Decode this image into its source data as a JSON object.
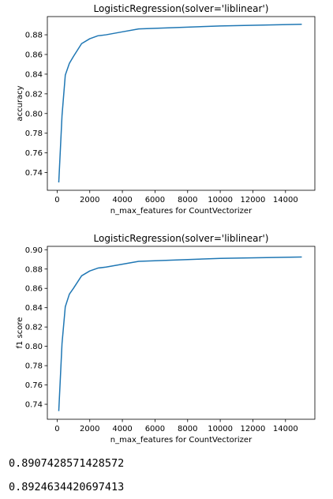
{
  "outputs": [
    "0.8907428571428572",
    "0.8924634420697413"
  ],
  "chart_data": [
    {
      "type": "line",
      "title": "LogisticRegression(solver='liblinear')",
      "xlabel": "n_max_features for CountVectorizer",
      "ylabel": "accuracy",
      "xlim": [
        -600,
        15800
      ],
      "ylim": [
        0.722,
        0.8985
      ],
      "xticks": [
        0,
        2000,
        4000,
        6000,
        8000,
        10000,
        12000,
        14000
      ],
      "yticks": [
        0.74,
        0.76,
        0.78,
        0.8,
        0.82,
        0.84,
        0.86,
        0.88
      ],
      "ytick_labels": [
        "0.74",
        "0.76",
        "0.78",
        "0.80",
        "0.82",
        "0.84",
        "0.86",
        "0.88"
      ],
      "line_color": "#1f77b4",
      "series": [
        {
          "x": [
            100,
            300,
            500,
            750,
            1000,
            1500,
            2000,
            2500,
            3000,
            4000,
            5000,
            10000,
            15000
          ],
          "y": [
            0.73,
            0.798,
            0.839,
            0.851,
            0.858,
            0.871,
            0.876,
            0.879,
            0.88,
            0.883,
            0.886,
            0.889,
            0.8907
          ]
        }
      ]
    },
    {
      "type": "line",
      "title": "LogisticRegression(solver='liblinear')",
      "xlabel": "n_max_features for CountVectorizer",
      "ylabel": "f1 score",
      "xlim": [
        -600,
        15800
      ],
      "ylim": [
        0.7245,
        0.9035
      ],
      "xticks": [
        0,
        2000,
        4000,
        6000,
        8000,
        10000,
        12000,
        14000
      ],
      "yticks": [
        0.74,
        0.76,
        0.78,
        0.8,
        0.82,
        0.84,
        0.86,
        0.88,
        0.9
      ],
      "ytick_labels": [
        "0.74",
        "0.76",
        "0.78",
        "0.80",
        "0.82",
        "0.84",
        "0.86",
        "0.88",
        "0.90"
      ],
      "line_color": "#1f77b4",
      "series": [
        {
          "x": [
            100,
            300,
            500,
            750,
            1000,
            1500,
            2000,
            2500,
            3000,
            4000,
            5000,
            10000,
            15000
          ],
          "y": [
            0.733,
            0.803,
            0.841,
            0.854,
            0.86,
            0.873,
            0.878,
            0.881,
            0.882,
            0.885,
            0.888,
            0.891,
            0.8925
          ]
        }
      ]
    }
  ]
}
